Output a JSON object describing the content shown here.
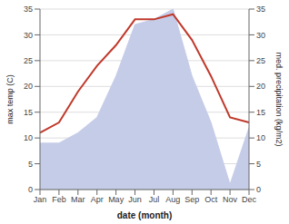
{
  "chart_data": {
    "type": "line",
    "categories": [
      "Jan",
      "Feb",
      "Mar",
      "Apr",
      "May",
      "Jun",
      "Jul",
      "Aug",
      "Sep",
      "Oct",
      "Nov",
      "Dec"
    ],
    "series": [
      {
        "type": "area",
        "color": "#c5cce8",
        "axis": "y2",
        "values": [
          9,
          9,
          11,
          14,
          22,
          32,
          33,
          35,
          22,
          13,
          1,
          12
        ]
      },
      {
        "type": "line",
        "color": "#c0392b",
        "values": [
          11,
          13,
          19,
          24,
          28,
          33,
          33,
          34,
          29,
          22,
          14,
          13
        ]
      }
    ],
    "xlabel": "date (month)",
    "ylabel": "max temp (C)",
    "y2label": "med. precipitation (kg/m2)",
    "ylim": [
      0,
      35
    ],
    "yticks": [
      0,
      5,
      10,
      15,
      20,
      25,
      30,
      35
    ],
    "y2lim": [
      0,
      35
    ],
    "y2ticks": [
      0,
      5,
      10,
      15,
      20,
      25,
      30,
      35
    ],
    "grid": true
  }
}
